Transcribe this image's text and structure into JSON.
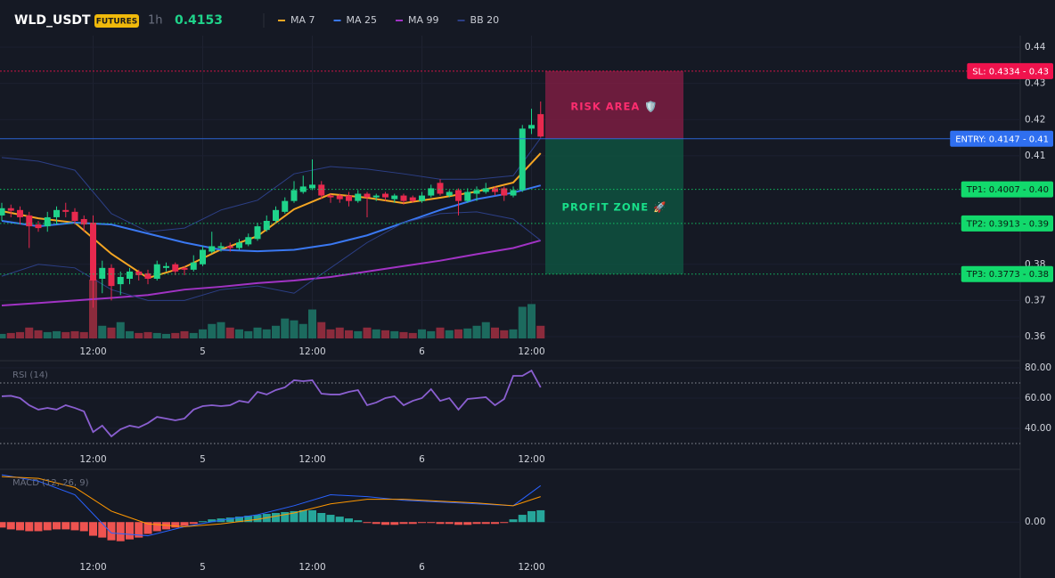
{
  "header": {
    "symbol": "WLD_USDT",
    "badge": "FUTURES",
    "interval": "1h",
    "price": 0.4153
  },
  "chart_data": [
    {
      "type": "candlestick",
      "categories": [
        null,
        null,
        null,
        null,
        null,
        null,
        null,
        null,
        null,
        null,
        "12:00",
        null,
        null,
        null,
        null,
        null,
        null,
        null,
        null,
        null,
        null,
        null,
        "5",
        null,
        null,
        null,
        null,
        null,
        null,
        null,
        null,
        null,
        null,
        null,
        "12:00",
        null,
        null,
        null,
        null,
        null,
        null,
        null,
        null,
        null,
        null,
        null,
        "6",
        null,
        null,
        null,
        null,
        null,
        null,
        null,
        null,
        null,
        null,
        null,
        "12:00",
        null
      ],
      "open": [
        0.3935,
        0.3955,
        0.395,
        0.3935,
        0.391,
        0.3905,
        0.393,
        0.395,
        0.3945,
        0.3925,
        0.3915,
        0.376,
        0.379,
        0.3745,
        0.376,
        0.378,
        0.3775,
        0.376,
        0.379,
        0.38,
        0.379,
        0.3785,
        0.38,
        0.3835,
        0.3845,
        0.385,
        0.3845,
        0.3855,
        0.387,
        0.3895,
        0.392,
        0.3945,
        0.3975,
        0.4,
        0.401,
        0.402,
        0.399,
        0.399,
        0.399,
        0.3975,
        0.3995,
        0.3985,
        0.3995,
        0.398,
        0.399,
        0.3985,
        0.3975,
        0.399,
        0.4025,
        0.399,
        0.4005,
        0.3975,
        0.3995,
        0.4,
        0.401,
        0.401,
        0.399,
        0.4005,
        0.4175,
        0.4215
      ],
      "high": [
        0.397,
        0.3965,
        0.396,
        0.3945,
        0.392,
        0.3945,
        0.396,
        0.397,
        0.3955,
        0.3935,
        0.3935,
        0.381,
        0.38,
        0.378,
        0.379,
        0.3785,
        0.3785,
        0.381,
        0.3805,
        0.3805,
        0.3795,
        0.3825,
        0.385,
        0.389,
        0.386,
        0.386,
        0.387,
        0.3885,
        0.3915,
        0.3935,
        0.396,
        0.3985,
        0.403,
        0.4045,
        0.409,
        0.403,
        0.3995,
        0.3995,
        0.4,
        0.4005,
        0.4,
        0.3995,
        0.4,
        0.3995,
        0.3995,
        0.399,
        0.4,
        0.402,
        0.4035,
        0.4005,
        0.401,
        0.401,
        0.4015,
        0.4025,
        0.4015,
        0.4015,
        0.4015,
        0.4185,
        0.423,
        0.425
      ],
      "low": [
        0.392,
        0.393,
        0.391,
        0.3845,
        0.389,
        0.389,
        0.391,
        0.393,
        0.391,
        0.389,
        0.368,
        0.372,
        0.37,
        0.3715,
        0.3745,
        0.3755,
        0.3745,
        0.3755,
        0.378,
        0.377,
        0.377,
        0.378,
        0.3795,
        0.383,
        0.3835,
        0.3835,
        0.384,
        0.385,
        0.3865,
        0.389,
        0.3915,
        0.394,
        0.397,
        0.3995,
        0.4005,
        0.398,
        0.397,
        0.397,
        0.396,
        0.397,
        0.393,
        0.3975,
        0.3975,
        0.397,
        0.3965,
        0.397,
        0.397,
        0.3985,
        0.399,
        0.3985,
        0.3935,
        0.397,
        0.3975,
        0.3995,
        0.399,
        0.3975,
        0.3985,
        0.4,
        0.416,
        0.415
      ],
      "close": [
        0.3955,
        0.3948,
        0.393,
        0.3905,
        0.39,
        0.393,
        0.395,
        0.3945,
        0.392,
        0.391,
        0.3755,
        0.379,
        0.374,
        0.3765,
        0.378,
        0.377,
        0.376,
        0.38,
        0.3795,
        0.378,
        0.3785,
        0.3805,
        0.384,
        0.385,
        0.385,
        0.3845,
        0.386,
        0.3875,
        0.3905,
        0.392,
        0.395,
        0.3975,
        0.4005,
        0.4015,
        0.402,
        0.399,
        0.3985,
        0.398,
        0.3975,
        0.3995,
        0.3985,
        0.399,
        0.3985,
        0.399,
        0.3975,
        0.3975,
        0.399,
        0.401,
        0.3995,
        0.4,
        0.3975,
        0.4,
        0.4005,
        0.401,
        0.4,
        0.399,
        0.4005,
        0.4175,
        0.4185,
        0.4153
      ],
      "volume": [
        5,
        6,
        7,
        12,
        9,
        7,
        8,
        7,
        8,
        7,
        65,
        14,
        12,
        18,
        8,
        6,
        7,
        6,
        5,
        6,
        8,
        6,
        10,
        16,
        18,
        12,
        10,
        8,
        12,
        10,
        14,
        22,
        20,
        16,
        32,
        18,
        10,
        12,
        9,
        8,
        12,
        10,
        9,
        8,
        7,
        6,
        10,
        8,
        12,
        9,
        10,
        11,
        14,
        18,
        12,
        9,
        10,
        35,
        38,
        14
      ],
      "up_color": "#1fd38a",
      "down_color": "#e8294e",
      "volume_up_color": "#1c6a5e",
      "volume_down_color": "#8b2b3c",
      "ylim": [
        0.36,
        0.44
      ],
      "yticks": [
        0.44,
        0.43,
        0.42,
        0.41,
        0.38,
        0.37,
        0.36
      ],
      "series": [
        {
          "name": "MA 7",
          "color": "#f5a623",
          "x": [
            0,
            4,
            8,
            12,
            16,
            20,
            24,
            28,
            32,
            36,
            40,
            44,
            48,
            52,
            56,
            59
          ],
          "values": [
            0.3947,
            0.3927,
            0.3915,
            0.3829,
            0.3762,
            0.3792,
            0.3841,
            0.3878,
            0.3952,
            0.3994,
            0.3984,
            0.3969,
            0.3984,
            0.4001,
            0.4026,
            0.4107
          ]
        },
        {
          "name": "MA 25",
          "color": "#3a78f2",
          "x": [
            0,
            4,
            8,
            12,
            16,
            20,
            24,
            28,
            32,
            36,
            40,
            44,
            48,
            52,
            56,
            59
          ],
          "values": [
            0.392,
            0.3905,
            0.3915,
            0.391,
            0.3885,
            0.386,
            0.384,
            0.3836,
            0.384,
            0.3855,
            0.388,
            0.3915,
            0.395,
            0.398,
            0.3998,
            0.4018
          ]
        },
        {
          "name": "MA 99",
          "color": "#a133c4",
          "x": [
            0,
            4,
            8,
            12,
            16,
            20,
            24,
            28,
            32,
            36,
            40,
            44,
            48,
            52,
            56,
            59
          ],
          "values": [
            0.3686,
            0.3693,
            0.37,
            0.3707,
            0.3715,
            0.373,
            0.3738,
            0.3748,
            0.3755,
            0.3765,
            0.378,
            0.3795,
            0.381,
            0.3828,
            0.3845,
            0.3866
          ]
        },
        {
          "name": "BB 20",
          "color": "#2c3f86",
          "x": [
            0,
            4,
            8,
            12,
            16,
            20,
            24,
            28,
            32,
            36,
            40,
            44,
            48,
            52,
            56,
            59
          ],
          "values": [
            0.4095,
            0.4085,
            0.406,
            0.394,
            0.389,
            0.39,
            0.395,
            0.3977,
            0.405,
            0.407,
            0.4063,
            0.405,
            0.4035,
            0.4035,
            0.4045,
            0.4149
          ]
        },
        {
          "color": "#2c3f86",
          "x": [
            0,
            4,
            8,
            12,
            16,
            20,
            24,
            28,
            32,
            36,
            40,
            44,
            48,
            52,
            56,
            59
          ],
          "values": [
            0.3767,
            0.38,
            0.379,
            0.373,
            0.37,
            0.37,
            0.373,
            0.374,
            0.372,
            0.379,
            0.386,
            0.3915,
            0.394,
            0.3945,
            0.3925,
            0.3866
          ]
        }
      ],
      "levels": [
        {
          "value": 0.4334,
          "label": "SL: 0.4334 - 0.43",
          "color": "#f0134d",
          "style": "dashed"
        },
        {
          "value": 0.4147,
          "label": "ENTRY: 0.4147 - 0.41",
          "color": "#2f6ff0",
          "style": "solid"
        },
        {
          "value": 0.4007,
          "label": "TP1: 0.4007 - 0.40",
          "color": "#12d96c",
          "style": "dotted"
        },
        {
          "value": 0.3913,
          "label": "TP2: 0.3913 - 0.39",
          "color": "#12d96c",
          "style": "dotted"
        },
        {
          "value": 0.3773,
          "label": "TP3: 0.3773 - 0.38",
          "color": "#12d96c",
          "style": "dotted"
        }
      ],
      "zones": [
        {
          "label": "RISK AREA 🛡️",
          "color": "#8a1d45",
          "text_color": "#ff2d6f"
        },
        {
          "label": "PROFIT ZONE 🚀",
          "color": "#0d5a43",
          "text_color": "#19e08a"
        }
      ]
    },
    {
      "type": "line",
      "title": "RSI (14)",
      "values": [
        61.2,
        61.5,
        60.0,
        55.3,
        52.4,
        53.5,
        52.4,
        55.3,
        53.5,
        51.2,
        37.6,
        41.8,
        34.7,
        39.4,
        41.8,
        40.6,
        43.5,
        47.6,
        46.5,
        45.3,
        46.5,
        52.4,
        54.7,
        55.3,
        54.7,
        55.3,
        58.2,
        57.1,
        64.1,
        62.4,
        65.3,
        67.1,
        71.8,
        71.2,
        71.8,
        62.9,
        62.4,
        62.4,
        64.1,
        65.3,
        55.3,
        57.1,
        60.0,
        61.2,
        55.3,
        58.2,
        60.0,
        65.9,
        58.2,
        60.0,
        52.4,
        59.4,
        60.0,
        60.6,
        55.3,
        59.4,
        74.7,
        74.7,
        78.2,
        67.1
      ],
      "color": "#8a5fd0",
      "ylim": [
        20,
        80
      ],
      "yticks": [
        {
          "value": 80,
          "label": "80.00"
        },
        {
          "value": 60,
          "label": "60.00"
        },
        {
          "value": 40,
          "label": "40.00"
        }
      ],
      "levels": [
        70,
        30
      ]
    },
    {
      "type": "macd",
      "title": "MACD (12, 26, 9)",
      "histogram": [
        -0.0006,
        -0.0008,
        -0.0009,
        -0.001,
        -0.001,
        -0.0009,
        -0.0008,
        -0.0008,
        -0.0009,
        -0.001,
        -0.0015,
        -0.0017,
        -0.002,
        -0.0021,
        -0.0019,
        -0.0017,
        -0.0013,
        -0.001,
        -0.0008,
        -0.0006,
        -0.0004,
        -0.0002,
        0.0001,
        0.0003,
        0.0004,
        0.0005,
        0.0006,
        0.0007,
        0.0008,
        0.0009,
        0.001,
        0.0011,
        0.0012,
        0.0013,
        0.0013,
        0.001,
        0.0008,
        0.0006,
        0.0004,
        0.0002,
        -0.0001,
        -0.0002,
        -0.0003,
        -0.0003,
        -0.0002,
        -0.0002,
        -0.0001,
        -0.0001,
        -0.0002,
        -0.0002,
        -0.0003,
        -0.0003,
        -0.0002,
        -0.0002,
        -0.0002,
        -0.0001,
        0.0003,
        0.0008,
        0.0012,
        0.0013
      ],
      "up_color": "#26a69a",
      "down_color": "#ef5350",
      "ylim": [
        -0.0035,
        0.0055
      ],
      "yticks": [
        {
          "value": 0,
          "label": "0.00"
        }
      ],
      "series": [
        {
          "color": "#2962ff",
          "x": [
            0,
            4,
            8,
            12,
            16,
            20,
            24,
            28,
            32,
            36,
            40,
            44,
            48,
            52,
            56,
            59
          ],
          "values": [
            0.0052,
            0.0045,
            0.003,
            -0.0012,
            -0.0015,
            -0.0005,
            0.0002,
            0.0008,
            0.0018,
            0.003,
            0.0028,
            0.0024,
            0.0022,
            0.002,
            0.0018,
            0.004
          ]
        },
        {
          "color": "#ff9800",
          "x": [
            0,
            4,
            8,
            12,
            16,
            20,
            24,
            28,
            32,
            36,
            40,
            44,
            48,
            52,
            56,
            59
          ],
          "values": [
            0.005,
            0.0048,
            0.0038,
            0.0012,
            -0.0002,
            -0.0005,
            -0.0002,
            0.0003,
            0.001,
            0.002,
            0.0025,
            0.0025,
            0.0023,
            0.0021,
            0.0018,
            0.0028
          ]
        }
      ]
    }
  ]
}
